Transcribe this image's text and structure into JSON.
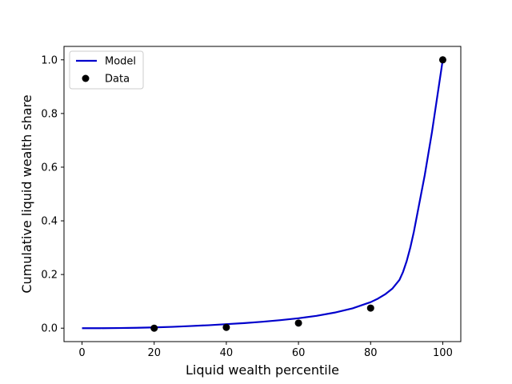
{
  "chart_data": {
    "type": "line",
    "xlabel": "Liquid wealth percentile",
    "ylabel": "Cumulative liquid wealth share",
    "xlim": [
      -5,
      105
    ],
    "ylim": [
      -0.05,
      1.05
    ],
    "xticks": [
      0,
      20,
      40,
      60,
      80,
      100
    ],
    "yticks": [
      0.0,
      0.2,
      0.4,
      0.6,
      0.8,
      1.0
    ],
    "xtick_labels": [
      "0",
      "20",
      "40",
      "60",
      "80",
      "100"
    ],
    "ytick_labels": [
      "0.0",
      "0.2",
      "0.4",
      "0.6",
      "0.8",
      "1.0"
    ],
    "grid": false,
    "legend_position": "top-left",
    "series": [
      {
        "name": "Model",
        "kind": "line",
        "color": "#0000cc",
        "x": [
          0,
          5,
          10,
          15,
          20,
          25,
          30,
          35,
          40,
          45,
          50,
          55,
          60,
          65,
          70,
          75,
          80,
          82,
          84,
          86,
          88,
          89,
          90,
          91,
          92,
          93,
          94,
          95,
          96,
          97,
          98,
          99,
          100
        ],
        "y": [
          0.0,
          0.0,
          0.0005,
          0.0015,
          0.003,
          0.005,
          0.008,
          0.011,
          0.015,
          0.019,
          0.024,
          0.03,
          0.037,
          0.046,
          0.058,
          0.074,
          0.097,
          0.11,
          0.126,
          0.147,
          0.18,
          0.21,
          0.25,
          0.3,
          0.36,
          0.43,
          0.5,
          0.57,
          0.65,
          0.73,
          0.82,
          0.91,
          1.0
        ]
      },
      {
        "name": "Data",
        "kind": "scatter",
        "color": "#000000",
        "x": [
          20,
          40,
          60,
          80,
          100
        ],
        "y": [
          0.0,
          0.003,
          0.019,
          0.075,
          1.0
        ]
      }
    ]
  }
}
